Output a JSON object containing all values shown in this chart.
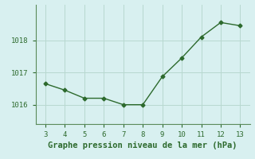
{
  "x": [
    3,
    4,
    5,
    6,
    7,
    8,
    9,
    10,
    11,
    12,
    13
  ],
  "y": [
    1016.65,
    1016.45,
    1016.2,
    1016.2,
    1016.0,
    1016.0,
    1016.87,
    1017.45,
    1018.1,
    1018.55,
    1018.45
  ],
  "line_color": "#2d6a2d",
  "marker": "D",
  "marker_size": 2.5,
  "background_color": "#d8f0f0",
  "grid_color": "#b8d8d0",
  "xlabel": "Graphe pression niveau de la mer (hPa)",
  "xlabel_color": "#2d6a2d",
  "xlabel_fontsize": 7.5,
  "tick_color": "#2d6a2d",
  "axis_color": "#5a8a5a",
  "xlim": [
    2.5,
    13.5
  ],
  "ylim": [
    1015.4,
    1019.1
  ],
  "yticks": [
    1016,
    1017,
    1018
  ],
  "xticks": [
    3,
    4,
    5,
    6,
    7,
    8,
    9,
    10,
    11,
    12,
    13
  ]
}
